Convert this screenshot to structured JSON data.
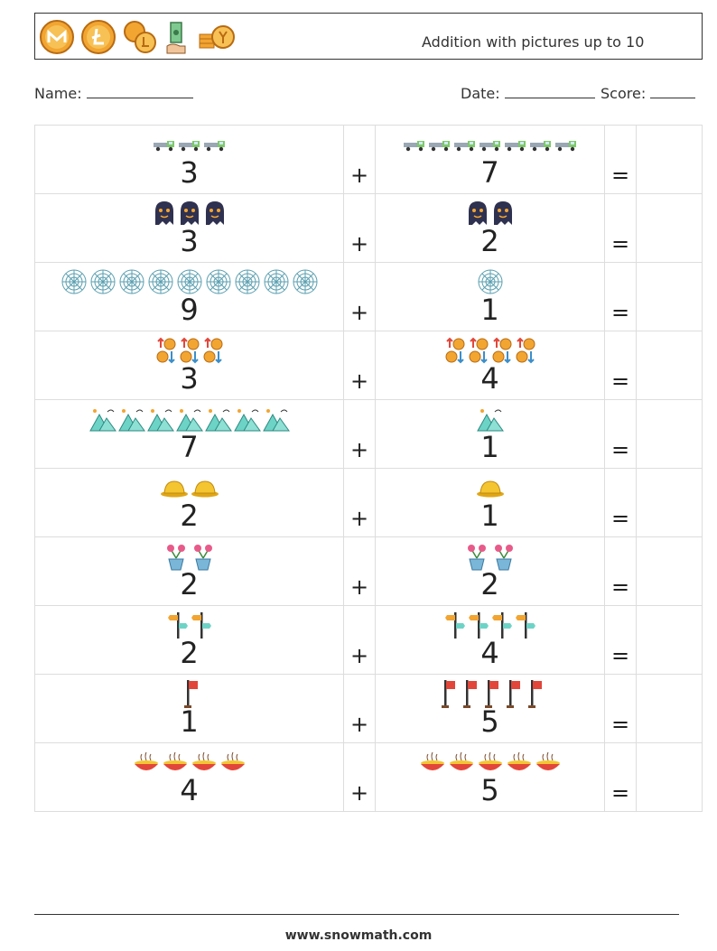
{
  "header": {
    "title": "Addition with pictures up to 10",
    "icons": [
      "monero-coin-icon",
      "litecoin-coin-icon",
      "coins-icon",
      "hand-cash-icon",
      "coin-stack-icon"
    ]
  },
  "fields": {
    "name_label": "Name:",
    "date_label": "Date:",
    "score_label": "Score:"
  },
  "symbols": {
    "plus": "+",
    "equals": "="
  },
  "problems": [
    {
      "a": "3",
      "b": "7",
      "a_count": 3,
      "b_count": 7,
      "icon": "truck-icon"
    },
    {
      "a": "3",
      "b": "2",
      "a_count": 3,
      "b_count": 2,
      "icon": "ghost-icon"
    },
    {
      "a": "9",
      "b": "1",
      "a_count": 9,
      "b_count": 1,
      "icon": "spiderweb-icon"
    },
    {
      "a": "3",
      "b": "4",
      "a_count": 3,
      "b_count": 4,
      "icon": "coin-arrows-icon"
    },
    {
      "a": "7",
      "b": "1",
      "a_count": 7,
      "b_count": 1,
      "icon": "mountain-icon"
    },
    {
      "a": "2",
      "b": "1",
      "a_count": 2,
      "b_count": 1,
      "icon": "hat-icon"
    },
    {
      "a": "2",
      "b": "2",
      "a_count": 2,
      "b_count": 2,
      "icon": "flower-pot-icon"
    },
    {
      "a": "2",
      "b": "4",
      "a_count": 2,
      "b_count": 4,
      "icon": "signpost-icon"
    },
    {
      "a": "1",
      "b": "5",
      "a_count": 1,
      "b_count": 5,
      "icon": "flag-icon"
    },
    {
      "a": "4",
      "b": "5",
      "a_count": 4,
      "b_count": 5,
      "icon": "bowl-icon"
    }
  ],
  "footer": {
    "site": "www.snowmath.com"
  }
}
